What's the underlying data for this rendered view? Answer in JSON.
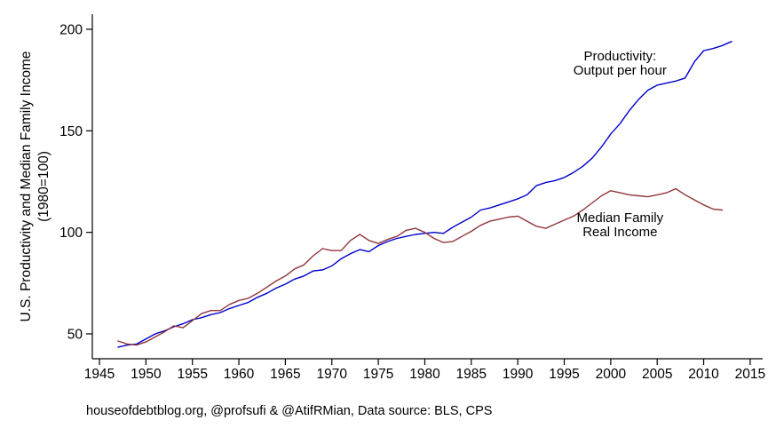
{
  "footer": {
    "text": "houseofdebtblog.org, @profsufi & @AtifRMian, Data source: BLS, CPS"
  },
  "chart_data": {
    "type": "line",
    "title": "",
    "ylabel": "U.S. Productivity and Median Family Income (1980=100)",
    "ylabel_line1": "U.S. Productivity and Median Family Income",
    "ylabel_line2": "(1980=100)",
    "xlabel": "",
    "x_axis": {
      "ticks": [
        1945,
        1950,
        1955,
        1960,
        1965,
        1970,
        1975,
        1980,
        1985,
        1990,
        1995,
        2000,
        2005,
        2010,
        2015
      ],
      "min": 1944.3,
      "max": 2016.3
    },
    "y_axis": {
      "ticks": [
        50,
        100,
        150,
        200
      ],
      "min": 37,
      "max": 207,
      "grid": false
    },
    "series": [
      {
        "name": "Productivity: Output per hour",
        "color": "#0000CC",
        "start_year": 1947,
        "end_year": 2013,
        "values": [
          43.5,
          44.5,
          45,
          47.5,
          50,
          51.5,
          53.5,
          55,
          57,
          58,
          59.5,
          60.5,
          62.5,
          64,
          65.5,
          68,
          70,
          72.5,
          74.5,
          77,
          78.5,
          81,
          81.5,
          83.5,
          87,
          89.5,
          91.5,
          90.5,
          93.5,
          95.5,
          97,
          98,
          99,
          99.5,
          100,
          99.5,
          102.5,
          105,
          107.5,
          111,
          112,
          113.5,
          115,
          116.5,
          118.5,
          123,
          124.5,
          125.5,
          127,
          129.5,
          132.5,
          136.5,
          142,
          148.5,
          153.5,
          160,
          165.5,
          170,
          172.5,
          173.5,
          174.5,
          176,
          184,
          189.5,
          190.5,
          192,
          194
        ]
      },
      {
        "name": "Median Family Real Income",
        "color": "#90353B",
        "start_year": 1947,
        "end_year": 2012,
        "values": [
          46.5,
          45,
          44.5,
          46,
          48.5,
          51,
          54,
          53,
          56.5,
          60,
          61.5,
          61.5,
          64.5,
          66.5,
          67.5,
          70,
          73,
          76,
          78.5,
          82,
          84,
          88.5,
          92,
          91,
          91,
          96,
          99,
          96,
          94.5,
          96.5,
          98,
          101,
          102,
          100,
          97,
          95,
          95.5,
          98,
          100.5,
          103.5,
          105.5,
          106.5,
          107.5,
          108,
          105.5,
          103,
          102,
          104,
          106,
          108,
          111,
          114.5,
          118,
          120.5,
          119.5,
          118.5,
          118,
          117.5,
          118.5,
          119.5,
          121.5,
          118.5,
          116,
          113.5,
          111.5,
          111
        ]
      }
    ],
    "annotations": [
      {
        "text": "Productivity:\nOutput per hour",
        "year": 2001,
        "value": 183
      },
      {
        "text": "Median Family\nReal Income",
        "year": 2001,
        "value": 103.5
      }
    ],
    "legend_position": "inline-annotations"
  }
}
